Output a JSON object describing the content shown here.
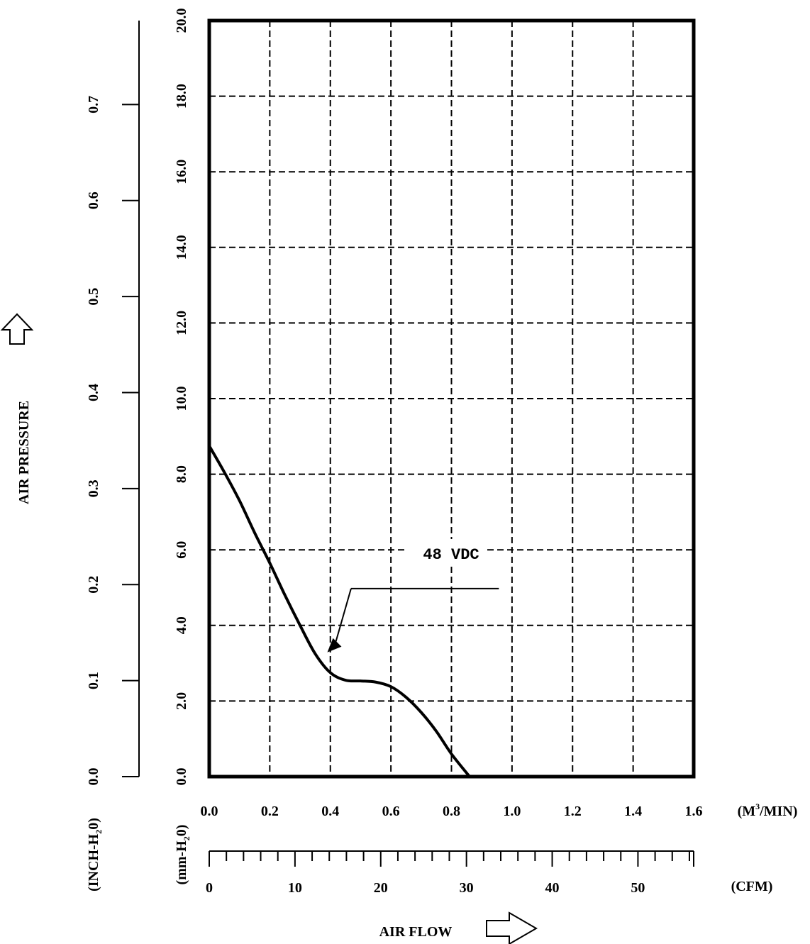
{
  "chart_data": {
    "type": "line",
    "title": "",
    "ylabel": "AIR PRESSURE",
    "xlabel": "AIR FLOW",
    "y_primary": {
      "unit_parts": [
        "(mm-H",
        "2",
        "0)"
      ],
      "range": [
        0,
        20
      ],
      "ticks": [
        0,
        2,
        4,
        6,
        8,
        10,
        12,
        14,
        16,
        18,
        20
      ],
      "tick_labels": [
        "0.0",
        "2.0",
        "4.0",
        "6.0",
        "8.0",
        "10.0",
        "12.0",
        "14.0",
        "16.0",
        "18.0",
        "20.0"
      ]
    },
    "y_secondary": {
      "unit_parts": [
        "(INCH-H",
        "2",
        "0)"
      ],
      "range": [
        0,
        0.7874
      ],
      "ticks": [
        0,
        0.1,
        0.2,
        0.3,
        0.4,
        0.5,
        0.6,
        0.7
      ],
      "tick_labels": [
        "0.0",
        "0.1",
        "0.2",
        "0.3",
        "0.4",
        "0.5",
        "0.6",
        "0.7"
      ]
    },
    "x_primary": {
      "unit_parts": [
        "(M",
        "3",
        "/MIN)"
      ],
      "range": [
        0,
        1.6
      ],
      "ticks": [
        0,
        0.2,
        0.4,
        0.6,
        0.8,
        1.0,
        1.2,
        1.4,
        1.6
      ],
      "tick_labels": [
        "0.0",
        "0.2",
        "0.4",
        "0.6",
        "0.8",
        "1.0",
        "1.2",
        "1.4",
        "1.6"
      ]
    },
    "x_secondary": {
      "unit": "(CFM)",
      "range": [
        0,
        56.5
      ],
      "major_ticks": [
        0,
        10,
        20,
        30,
        40,
        50
      ],
      "tick_labels": [
        "0",
        "10",
        "20",
        "30",
        "40",
        "50"
      ],
      "minor_step": 2
    },
    "grid": true,
    "series": [
      {
        "name": "48 VDC",
        "x": [
          0.0,
          0.05,
          0.1,
          0.15,
          0.2,
          0.25,
          0.3,
          0.35,
          0.4,
          0.45,
          0.5,
          0.55,
          0.6,
          0.65,
          0.7,
          0.75,
          0.8,
          0.86
        ],
        "y": [
          8.75,
          8.05,
          7.3,
          6.45,
          5.65,
          4.8,
          4.0,
          3.25,
          2.75,
          2.55,
          2.53,
          2.5,
          2.38,
          2.1,
          1.7,
          1.2,
          0.6,
          0.0
        ]
      }
    ],
    "annotation": {
      "text": "48 VDC",
      "target": [
        0.39,
        3.55
      ],
      "elbow": [
        0.63,
        5.5
      ],
      "underline_end": [
        0.98,
        5.5
      ]
    }
  }
}
